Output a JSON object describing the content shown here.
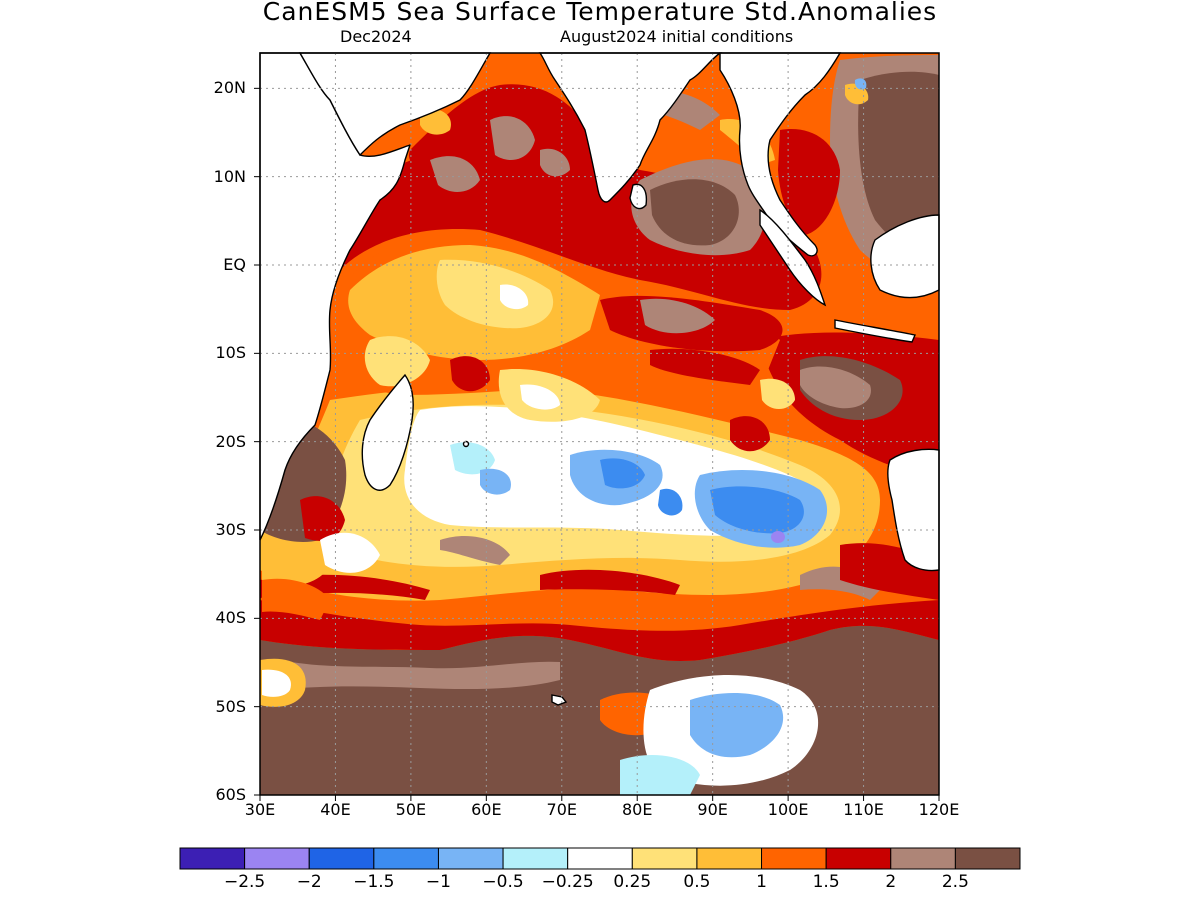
{
  "title": "CanESM5 Sea Surface Temperature Std.Anomalies",
  "subtitle_left": "Dec2024",
  "subtitle_right": "August2024 initial conditions",
  "lat_labels": [
    "20N",
    "10N",
    "EQ",
    "10S",
    "20S",
    "30S",
    "40S",
    "50S",
    "60S"
  ],
  "lat_values": [
    20,
    10,
    0,
    -10,
    -20,
    -30,
    -40,
    -50,
    -60
  ],
  "lon_labels": [
    "30E",
    "40E",
    "50E",
    "60E",
    "70E",
    "80E",
    "90E",
    "100E",
    "110E",
    "120E"
  ],
  "lon_values": [
    30,
    40,
    50,
    60,
    70,
    80,
    90,
    100,
    110,
    120
  ],
  "map_extent": {
    "lon": [
      30,
      120
    ],
    "lat": [
      -60,
      24
    ]
  },
  "colorbar": {
    "colors": [
      "#3c1fb4",
      "#9b84f2",
      "#1f64e6",
      "#3c8cf0",
      "#78b4f5",
      "#b4f0fa",
      "#ffffff",
      "#ffe178",
      "#ffbe37",
      "#ff6400",
      "#c80000",
      "#ae8577",
      "#7a5043"
    ],
    "labels": [
      "−2.5",
      "−2",
      "−1.5",
      "−1",
      "−0.5",
      "−0.25",
      "0.25",
      "0.5",
      "1",
      "1.5",
      "2",
      "2.5"
    ]
  },
  "anomaly_regions": [
    {
      "level": "2.5",
      "color": "#7a5043",
      "area": "Southern Ocean south of 42S"
    },
    {
      "level": "2",
      "color": "#ae8577",
      "area": "Bay of Bengal and Arabian Sea"
    },
    {
      "level": "1.5",
      "color": "#c80000",
      "area": "Northern Indian Ocean"
    },
    {
      "level": "1",
      "color": "#ff6400",
      "area": "Equatorial band"
    },
    {
      "level": "0.25",
      "color": "#ffffff",
      "area": "Subtropical South Indian Ocean"
    },
    {
      "level": "-1",
      "color": "#3c8cf0",
      "area": "Around 25S-32S, 85E-105E"
    }
  ]
}
